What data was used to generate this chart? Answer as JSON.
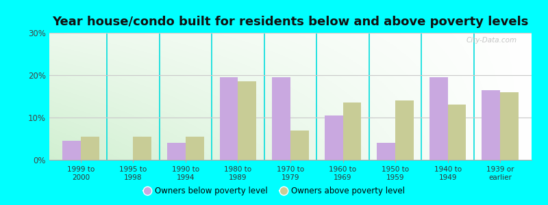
{
  "title": "Year house/condo built for residents below and above poverty levels",
  "categories": [
    "1999 to\n2000",
    "1995 to\n1998",
    "1990 to\n1994",
    "1980 to\n1989",
    "1970 to\n1979",
    "1960 to\n1969",
    "1950 to\n1959",
    "1940 to\n1949",
    "1939 or\nearlier"
  ],
  "below_poverty": [
    4.5,
    0,
    4.0,
    19.5,
    19.5,
    10.5,
    4.0,
    19.5,
    16.5
  ],
  "above_poverty": [
    5.5,
    5.5,
    5.5,
    18.5,
    7.0,
    13.5,
    14.0,
    13.0,
    16.0
  ],
  "below_color": "#c9a8e0",
  "above_color": "#c8cc96",
  "ylim": [
    0,
    30
  ],
  "yticks": [
    0,
    10,
    20,
    30
  ],
  "ytick_labels": [
    "0%",
    "10%",
    "20%",
    "30%"
  ],
  "outer_bg": "#00ffff",
  "bar_width": 0.35,
  "title_fontsize": 13,
  "legend_below_label": "Owners below poverty level",
  "legend_above_label": "Owners above poverty level",
  "grid_color": "#cccccc",
  "separator_color": "#00dddd",
  "watermark": "City-Data.com"
}
